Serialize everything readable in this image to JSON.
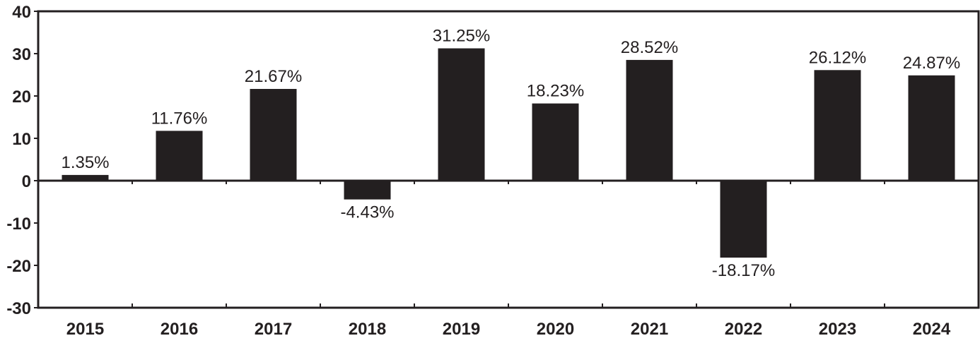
{
  "chart_data": {
    "type": "bar",
    "categories": [
      "2015",
      "2016",
      "2017",
      "2018",
      "2019",
      "2020",
      "2021",
      "2022",
      "2023",
      "2024"
    ],
    "values": [
      1.35,
      11.76,
      21.67,
      -4.43,
      31.25,
      18.23,
      28.52,
      -18.17,
      26.12,
      24.87
    ],
    "data_labels": [
      "1.35%",
      "11.76%",
      "21.67%",
      "-4.43%",
      "31.25%",
      "18.23%",
      "28.52%",
      "-18.17%",
      "26.12%",
      "24.87%"
    ],
    "y_ticks": [
      40,
      30,
      20,
      10,
      0,
      -10,
      -20,
      -30
    ],
    "ylim": [
      -30,
      40
    ],
    "title": "",
    "xlabel": "",
    "ylabel": "",
    "grid": false,
    "legend": "none",
    "bar_color": "#231f20",
    "axis_color": "#231f20"
  }
}
